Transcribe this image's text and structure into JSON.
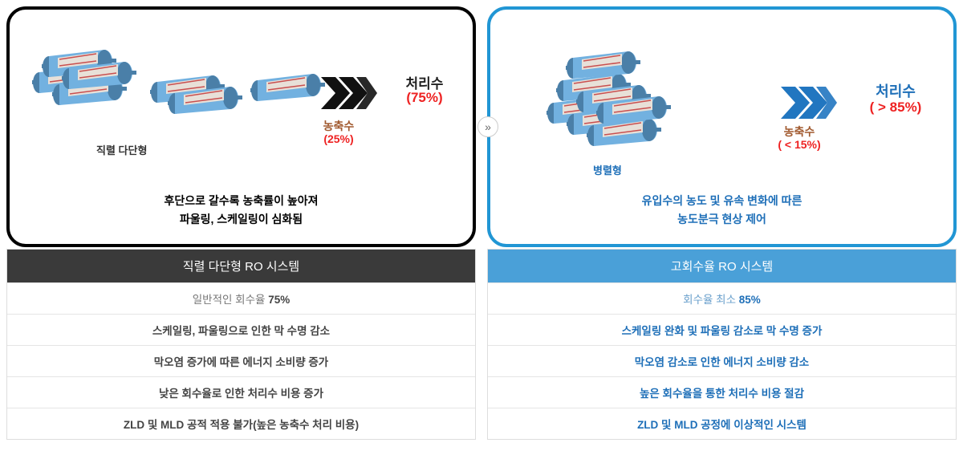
{
  "left": {
    "box_border": "#000000",
    "cluster_label": "직렬 다단형",
    "concentrate_label": "농축수",
    "concentrate_value": "(25%)",
    "permeate_label": "처리수",
    "permeate_value": "(75%)",
    "desc_line1": "후단으로 갈수록 농축률이 높아져",
    "desc_line2": "파울링, 스케일링이 심화됨",
    "chevron_color": "#111111",
    "table_title": "직렬 다단형 RO 시스템",
    "rows": [
      {
        "prefix": "일반적인 회수율 ",
        "bold": "75%"
      },
      {
        "text": "스케일링, 파울링으로 인한 막 수명 감소"
      },
      {
        "text": "막오염 증가에 따른 에너지 소비량 증가"
      },
      {
        "text": "낮은 회수율로 인한 처리수 비용 증가"
      },
      {
        "text": "ZLD 및 MLD 공적 적용 불가(높은 농축수 처리 비용)"
      }
    ]
  },
  "right": {
    "box_border": "#2196d4",
    "cluster_label": "병렬형",
    "concentrate_label": "농축수",
    "concentrate_value": "( < 15%)",
    "permeate_label": "처리수",
    "permeate_value": "( > 85%)",
    "desc_line1": "유입수의 농도 및 유속 변화에 따른",
    "desc_line2": "농도분극 현상 제어",
    "chevron_color": "#2176c0",
    "table_title": "고회수율 RO 시스템",
    "rows": [
      {
        "prefix": "회수율 최소 ",
        "bold": "85%"
      },
      {
        "text": "스케일링 완화 및 파울링 감소로 막 수명 증가"
      },
      {
        "text": "막오염 감소로 인한 에너지 소비량 감소"
      },
      {
        "text": "높은 회수율을 통한 처리수 비용 절감"
      },
      {
        "text": "ZLD 및 MLD 공정에 이상적인 시스템"
      }
    ]
  },
  "tube_colors": {
    "body": "#72b1e0",
    "cap": "#4a7fa8",
    "window": "#e8e0d8",
    "stripe": "#c94f4f"
  },
  "gap_glyph": "»"
}
